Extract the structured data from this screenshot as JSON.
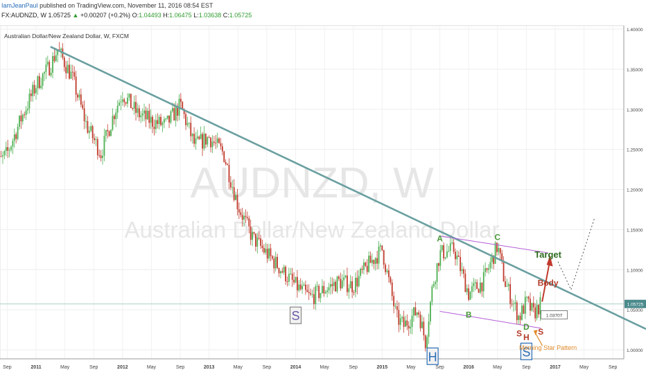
{
  "header": {
    "author": "IamJeanPaul",
    "published_text": "published on TradingView.com, November 11, 2016 08:54 EST",
    "symbol_line": "FX:AUDNZD, W 1.05725",
    "change_arrow": "▲",
    "change_text": "+0.00207 (+0.2%)",
    "ohlc": {
      "o_label": "O:",
      "o": "1.04493",
      "h_label": "H:",
      "h": "1.06475",
      "l_label": "L:",
      "l": "1.03638",
      "c_label": "C:",
      "c": "1.05725"
    }
  },
  "chart_title": "Australian Dollar/New Zealand Dollar, W, FXCM",
  "watermark": {
    "symbol": "AUDNZD, W",
    "name": "Australian Dollar/New Zealand Dollar"
  },
  "colors": {
    "up": "#4caf50",
    "down": "#c0392b",
    "trendline": "#6a9fa0",
    "channel": "#b25bd6",
    "target_arrow": "#c0392b",
    "current_line": "#a8cfc8"
  },
  "chart_data": {
    "type": "candlestick",
    "title": "Australian Dollar/New Zealand Dollar, W, FXCM",
    "x_range": [
      "2010-07",
      "2017-10"
    ],
    "ylim": [
      0.985,
      1.405
    ],
    "y_ticks": [
      "1.40000",
      "1.35000",
      "1.30000",
      "1.25000",
      "1.20000",
      "1.15000",
      "1.10000",
      "1.05000",
      "1.00000"
    ],
    "x_ticks": [
      "Sep",
      "2011",
      "May",
      "Sep",
      "2012",
      "May",
      "Sep",
      "2013",
      "May",
      "Sep",
      "2014",
      "May",
      "Sep",
      "2015",
      "May",
      "Sep",
      "2016",
      "May",
      "Sep",
      "2017",
      "May",
      "Sep"
    ],
    "last_price": "1.05725",
    "price_path": [
      [
        "2010-07",
        1.225
      ],
      [
        "2010-09",
        1.245
      ],
      [
        "2010-11",
        1.29
      ],
      [
        "2011-01",
        1.33
      ],
      [
        "2011-03",
        1.355
      ],
      [
        "2011-04",
        1.375
      ],
      [
        "2011-06",
        1.34
      ],
      [
        "2011-08",
        1.28
      ],
      [
        "2011-10",
        1.245
      ],
      [
        "2011-12",
        1.3
      ],
      [
        "2012-01",
        1.32
      ],
      [
        "2012-03",
        1.295
      ],
      [
        "2012-05",
        1.285
      ],
      [
        "2012-07",
        1.28
      ],
      [
        "2012-09",
        1.305
      ],
      [
        "2012-11",
        1.255
      ],
      [
        "2013-01",
        1.265
      ],
      [
        "2013-03",
        1.245
      ],
      [
        "2013-05",
        1.18
      ],
      [
        "2013-07",
        1.14
      ],
      [
        "2013-09",
        1.12
      ],
      [
        "2013-11",
        1.1
      ],
      [
        "2014-01",
        1.08
      ],
      [
        "2014-03",
        1.065
      ],
      [
        "2014-05",
        1.075
      ],
      [
        "2014-07",
        1.085
      ],
      [
        "2014-09",
        1.08
      ],
      [
        "2014-11",
        1.105
      ],
      [
        "2015-01",
        1.125
      ],
      [
        "2015-03",
        1.04
      ],
      [
        "2015-04",
        1.03
      ],
      [
        "2015-06",
        1.05
      ],
      [
        "2015-07",
        1.01
      ],
      [
        "2015-08",
        1.08
      ],
      [
        "2015-09",
        1.12
      ],
      [
        "2015-11",
        1.125
      ],
      [
        "2016-01",
        1.07
      ],
      [
        "2016-03",
        1.085
      ],
      [
        "2016-05",
        1.13
      ],
      [
        "2016-06",
        1.085
      ],
      [
        "2016-08",
        1.04
      ],
      [
        "2016-09",
        1.06
      ],
      [
        "2016-10",
        1.045
      ],
      [
        "2016-11",
        1.0572
      ]
    ],
    "annotations": [
      {
        "text": "S",
        "type": "boxed",
        "date": "2014-01",
        "price": 1.043
      },
      {
        "text": "H",
        "type": "boxed",
        "date": "2015-08",
        "price": 0.992
      },
      {
        "text": "S",
        "type": "boxed",
        "date": "2016-09",
        "price": 0.998
      },
      {
        "text": "A",
        "type": "label",
        "date": "2015-09",
        "price": 1.135
      },
      {
        "text": "B",
        "type": "label",
        "date": "2016-01",
        "price": 1.04
      },
      {
        "text": "C",
        "type": "label",
        "date": "2016-05",
        "price": 1.137
      },
      {
        "text": "D",
        "type": "label",
        "date": "2016-09",
        "price": 1.025
      },
      {
        "text": "S",
        "type": "label",
        "date": "2016-08",
        "price": 1.017
      },
      {
        "text": "H",
        "type": "label",
        "date": "2016-09",
        "price": 1.012
      },
      {
        "text": "S",
        "type": "label",
        "date": "2016-11",
        "price": 1.019
      },
      {
        "text": "Target",
        "type": "label",
        "date": "2016-12",
        "price": 1.115
      },
      {
        "text": "Body",
        "type": "label",
        "date": "2016-12",
        "price": 1.08
      },
      {
        "text": "Morning Star Pattern",
        "type": "label",
        "date": "2016-12",
        "price": 1.0
      },
      {
        "text": "1.03707",
        "type": "price-box",
        "date": "2016-12",
        "price": 1.0437
      }
    ]
  }
}
